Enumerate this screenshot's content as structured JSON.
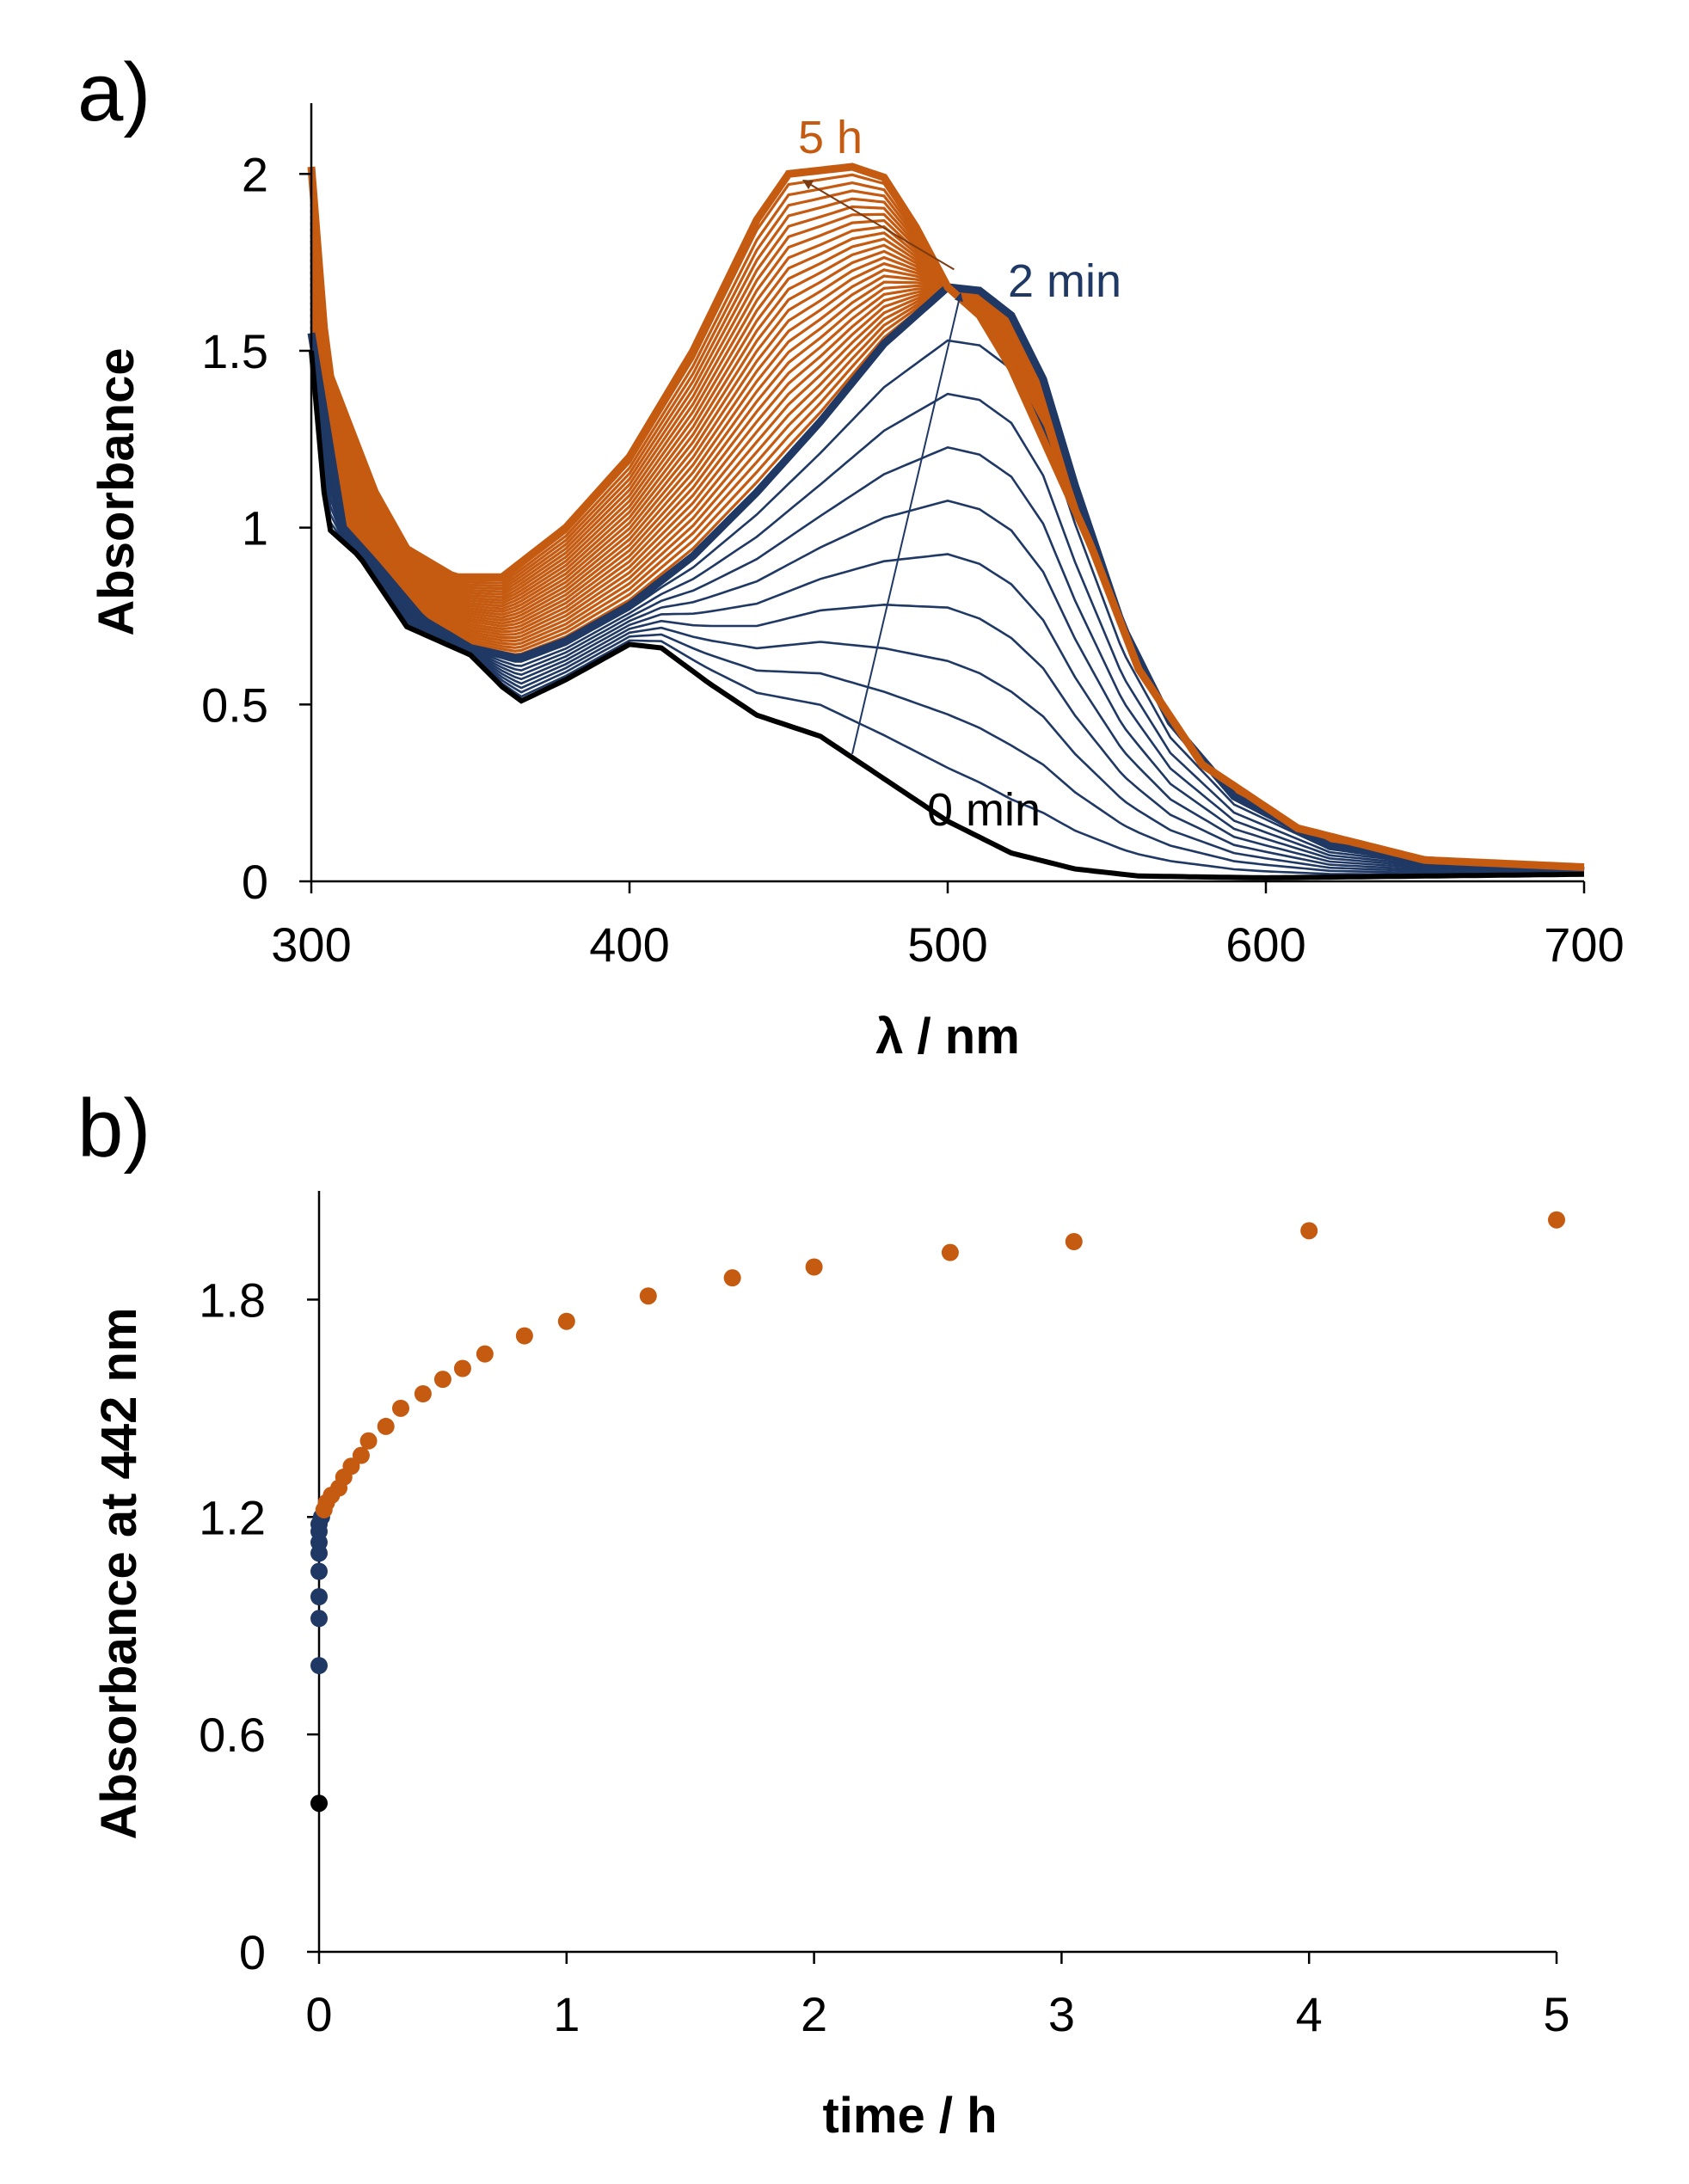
{
  "colors": {
    "black": "#000000",
    "navy": "#1f3864",
    "orange": "#c55a11",
    "axis": "#000000"
  },
  "chart_data": [
    {
      "panel_label": "a)",
      "type": "line",
      "xlabel": "λ / nm",
      "ylabel": "Absorbance",
      "xlim": [
        300,
        700
      ],
      "ylim": [
        0,
        2.2
      ],
      "xticks": [
        "300",
        "400",
        "500",
        "600",
        "700"
      ],
      "yticks": [
        "0",
        "0.5",
        "1",
        "1.5",
        "2"
      ],
      "grid": false,
      "annotations": [
        {
          "text": "5 h",
          "color": "orange"
        },
        {
          "text": "2 min",
          "color": "navy"
        },
        {
          "text": "0 min",
          "color": "black"
        }
      ],
      "series_groups": [
        {
          "label": "0 min",
          "color": "black",
          "count": 1
        },
        {
          "color": "navy",
          "count": 9
        },
        {
          "label": "2 min",
          "color": "navy_bold",
          "count": 1
        },
        {
          "color": "orange",
          "count": 26
        },
        {
          "label": "5 h",
          "color": "orange_bold",
          "count": 1
        }
      ],
      "anchor_spectra": {
        "0 min": [
          [
            300,
            1.5
          ],
          [
            305,
            1.0
          ],
          [
            315,
            0.92
          ],
          [
            330,
            0.72
          ],
          [
            350,
            0.64
          ],
          [
            360,
            0.55
          ],
          [
            366,
            0.51
          ],
          [
            380,
            0.57
          ],
          [
            400,
            0.67
          ],
          [
            410,
            0.66
          ],
          [
            425,
            0.56
          ],
          [
            440,
            0.47
          ],
          [
            460,
            0.41
          ],
          [
            480,
            0.29
          ],
          [
            500,
            0.17
          ],
          [
            520,
            0.08
          ],
          [
            540,
            0.035
          ],
          [
            560,
            0.015
          ],
          [
            600,
            0.01
          ],
          [
            700,
            0.02
          ]
        ],
        "2 min": [
          [
            300,
            1.55
          ],
          [
            310,
            1.0
          ],
          [
            320,
            0.9
          ],
          [
            335,
            0.74
          ],
          [
            350,
            0.66
          ],
          [
            365,
            0.63
          ],
          [
            380,
            0.68
          ],
          [
            400,
            0.78
          ],
          [
            420,
            0.92
          ],
          [
            440,
            1.1
          ],
          [
            460,
            1.3
          ],
          [
            480,
            1.52
          ],
          [
            500,
            1.68
          ],
          [
            510,
            1.67
          ],
          [
            520,
            1.6
          ],
          [
            530,
            1.42
          ],
          [
            540,
            1.12
          ],
          [
            555,
            0.72
          ],
          [
            570,
            0.45
          ],
          [
            590,
            0.24
          ],
          [
            620,
            0.1
          ],
          [
            650,
            0.06
          ],
          [
            700,
            0.03
          ]
        ],
        "5 h": [
          [
            300,
            2.02
          ],
          [
            305,
            1.45
          ],
          [
            320,
            1.1
          ],
          [
            330,
            0.94
          ],
          [
            345,
            0.86
          ],
          [
            360,
            0.86
          ],
          [
            380,
            1.0
          ],
          [
            400,
            1.2
          ],
          [
            420,
            1.5
          ],
          [
            440,
            1.87
          ],
          [
            450,
            2.0
          ],
          [
            470,
            2.02
          ],
          [
            480,
            1.99
          ],
          [
            490,
            1.85
          ],
          [
            500,
            1.68
          ],
          [
            510,
            1.6
          ],
          [
            520,
            1.45
          ],
          [
            530,
            1.25
          ],
          [
            545,
            0.95
          ],
          [
            560,
            0.6
          ],
          [
            580,
            0.33
          ],
          [
            610,
            0.15
          ],
          [
            650,
            0.06
          ],
          [
            700,
            0.04
          ]
        ]
      }
    },
    {
      "panel_label": "b)",
      "type": "scatter",
      "xlabel": "time / h",
      "ylabel": "Absorbance at 442 nm",
      "xlim": [
        0,
        5
      ],
      "ylim": [
        0,
        2.1
      ],
      "xticks": [
        "0",
        "1",
        "2",
        "3",
        "4",
        "5"
      ],
      "yticks": [
        "0",
        "0.6",
        "1.2",
        "1.8"
      ],
      "grid": false,
      "series": [
        {
          "color": "black",
          "points": [
            [
              0,
              0.41
            ]
          ]
        },
        {
          "color": "navy",
          "points": [
            [
              0,
              0.79
            ],
            [
              0,
              0.92
            ],
            [
              0,
              0.98
            ],
            [
              0,
              1.05
            ],
            [
              0,
              1.1
            ],
            [
              0,
              1.13
            ],
            [
              0,
              1.16
            ],
            [
              0,
              1.18
            ],
            [
              0.01,
              1.2
            ]
          ]
        },
        {
          "color": "orange",
          "points": [
            [
              0.02,
              1.22
            ],
            [
              0.03,
              1.24
            ],
            [
              0.05,
              1.26
            ],
            [
              0.08,
              1.28
            ],
            [
              0.1,
              1.31
            ],
            [
              0.13,
              1.34
            ],
            [
              0.17,
              1.37
            ],
            [
              0.2,
              1.41
            ],
            [
              0.27,
              1.45
            ],
            [
              0.33,
              1.5
            ],
            [
              0.42,
              1.54
            ],
            [
              0.5,
              1.58
            ],
            [
              0.58,
              1.61
            ],
            [
              0.67,
              1.65
            ],
            [
              0.83,
              1.7
            ],
            [
              1.0,
              1.74
            ],
            [
              1.33,
              1.81
            ],
            [
              1.67,
              1.86
            ],
            [
              2.0,
              1.89
            ],
            [
              2.55,
              1.93
            ],
            [
              3.05,
              1.96
            ],
            [
              4.0,
              1.99
            ],
            [
              5.0,
              2.02
            ]
          ]
        }
      ]
    }
  ]
}
